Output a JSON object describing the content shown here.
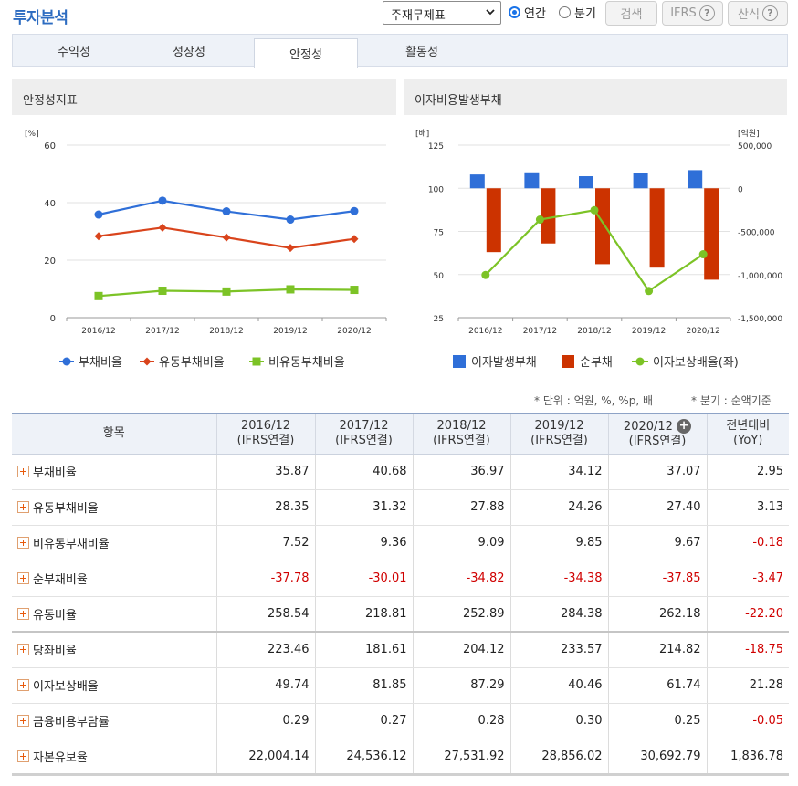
{
  "header": {
    "title": "투자분석",
    "select_value": "주재무제표",
    "radio_annual": "연간",
    "radio_quarter": "분기",
    "search_label": "검색",
    "ifrs_label": "IFRS",
    "formula_label": "산식",
    "help_glyph": "?"
  },
  "tabs": [
    {
      "label": "수익성",
      "active": false
    },
    {
      "label": "성장성",
      "active": false
    },
    {
      "label": "안정성",
      "active": true
    },
    {
      "label": "활동성",
      "active": false
    }
  ],
  "left_panel": {
    "title": "안정성지표"
  },
  "right_panel": {
    "title": "이자비용발생부채"
  },
  "chart_data": [
    {
      "type": "line",
      "title": "안정성지표",
      "ylabel": "[%]",
      "categories": [
        "2016/12",
        "2017/12",
        "2018/12",
        "2019/12",
        "2020/12"
      ],
      "ylim": [
        0,
        60
      ],
      "yticks": [
        0,
        20,
        40,
        60
      ],
      "legend_position": "bottom",
      "series": [
        {
          "name": "부채비율",
          "color": "#2f6fd8",
          "marker": "circle",
          "values": [
            35.87,
            40.68,
            36.97,
            34.12,
            37.07
          ]
        },
        {
          "name": "유동부채비율",
          "color": "#d9441c",
          "marker": "diamond",
          "values": [
            28.35,
            31.32,
            27.88,
            24.26,
            27.4
          ]
        },
        {
          "name": "비유동부채비율",
          "color": "#7cc326",
          "marker": "square",
          "values": [
            7.52,
            9.36,
            9.09,
            9.85,
            9.67
          ]
        }
      ]
    },
    {
      "type": "bar",
      "title": "이자비용발생부채",
      "categories": [
        "2016/12",
        "2017/12",
        "2018/12",
        "2019/12",
        "2020/12"
      ],
      "y_left": {
        "label": "[배]",
        "ylim": [
          25,
          125
        ],
        "ticks": [
          25,
          50,
          75,
          100,
          125
        ]
      },
      "y_right": {
        "label": "[억원]",
        "ylim": [
          -1500000,
          500000
        ],
        "ticks": [
          "500,000",
          "0",
          "-500,000",
          "-1,000,000",
          "-1,500,000"
        ]
      },
      "legend_position": "bottom",
      "series": [
        {
          "name": "이자발생부채",
          "type": "bar",
          "axis": "right",
          "color": "#2f6fd8",
          "values": [
            160000,
            185000,
            140000,
            180000,
            210000
          ]
        },
        {
          "name": "순부채",
          "type": "bar",
          "axis": "right",
          "color": "#cc3300",
          "values": [
            -740000,
            -640000,
            -880000,
            -920000,
            -1060000
          ]
        },
        {
          "name": "이자보상배율(좌)",
          "type": "line",
          "axis": "left",
          "color": "#7cc326",
          "values": [
            49.74,
            81.85,
            87.29,
            40.46,
            61.74
          ]
        }
      ]
    }
  ],
  "notes": {
    "unit": "* 단위 : 억원, %, %p, 배",
    "quarter": "* 분기 : 순액기준"
  },
  "table": {
    "headers": [
      {
        "line1": "항목",
        "line2": ""
      },
      {
        "line1": "2016/12",
        "line2": "(IFRS연결)"
      },
      {
        "line1": "2017/12",
        "line2": "(IFRS연결)"
      },
      {
        "line1": "2018/12",
        "line2": "(IFRS연결)"
      },
      {
        "line1": "2019/12",
        "line2": "(IFRS연결)"
      },
      {
        "line1": "2020/12",
        "line2": "(IFRS연결)"
      },
      {
        "line1": "전년대비",
        "line2": "(YoY)"
      }
    ],
    "rows": [
      {
        "label": "부채비율",
        "values": [
          "35.87",
          "40.68",
          "36.97",
          "34.12",
          "37.07",
          "2.95"
        ]
      },
      {
        "label": "유동부채비율",
        "values": [
          "28.35",
          "31.32",
          "27.88",
          "24.26",
          "27.40",
          "3.13"
        ]
      },
      {
        "label": "비유동부채비율",
        "values": [
          "7.52",
          "9.36",
          "9.09",
          "9.85",
          "9.67",
          "-0.18"
        ]
      },
      {
        "label": "순부채비율",
        "values": [
          "-37.78",
          "-30.01",
          "-34.82",
          "-34.38",
          "-37.85",
          "-3.47"
        ]
      },
      {
        "label": "유동비율",
        "values": [
          "258.54",
          "218.81",
          "252.89",
          "284.38",
          "262.18",
          "-22.20"
        ]
      },
      {
        "label": "당좌비율",
        "values": [
          "223.46",
          "181.61",
          "204.12",
          "233.57",
          "214.82",
          "-18.75"
        ]
      },
      {
        "label": "이자보상배율",
        "values": [
          "49.74",
          "81.85",
          "87.29",
          "40.46",
          "61.74",
          "21.28"
        ]
      },
      {
        "label": "금융비용부담률",
        "values": [
          "0.29",
          "0.27",
          "0.28",
          "0.30",
          "0.25",
          "-0.05"
        ]
      },
      {
        "label": "자본유보율",
        "values": [
          "22,004.14",
          "24,536.12",
          "27,531.92",
          "28,856.02",
          "30,692.79",
          "1,836.78"
        ]
      }
    ]
  }
}
